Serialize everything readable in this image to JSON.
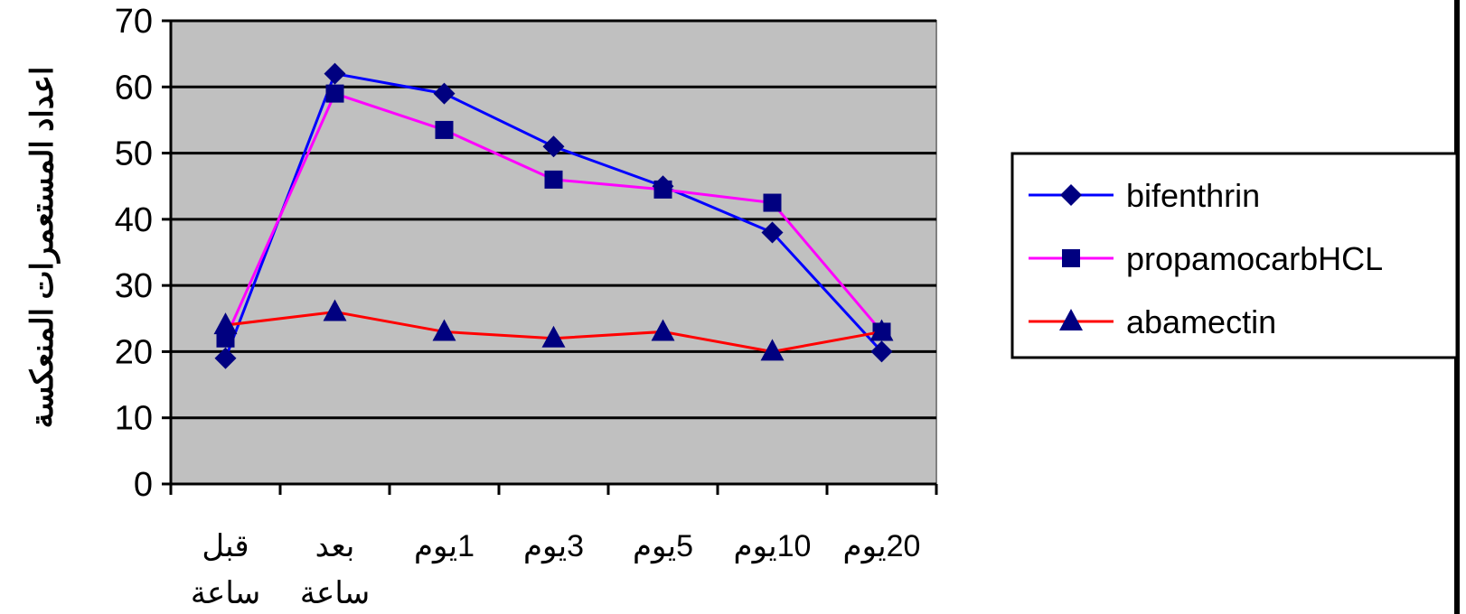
{
  "chart_data": {
    "type": "line",
    "title": "",
    "xlabel": "",
    "ylabel": "اعداد المستعمرات المنعكسة",
    "ylim": [
      0,
      70
    ],
    "yticks": [
      0,
      10,
      20,
      30,
      40,
      50,
      60,
      70
    ],
    "grid": true,
    "plot_background": "#c0c0c0",
    "legend_position": "right",
    "categories": [
      [
        "قبل",
        "ساعة"
      ],
      [
        "بعد",
        "ساعة"
      ],
      [
        "1يوم"
      ],
      [
        "3يوم"
      ],
      [
        "5يوم"
      ],
      [
        "10يوم"
      ],
      [
        "20يوم"
      ]
    ],
    "series": [
      {
        "name": "bifenthrin",
        "color": "#0000ff",
        "marker": "diamond",
        "marker_color": "#000080",
        "values": [
          19,
          62,
          59,
          51,
          45,
          38,
          20
        ]
      },
      {
        "name": "propamocarbHCL",
        "color": "#ff00ff",
        "marker": "square",
        "marker_color": "#000080",
        "values": [
          22,
          59,
          53.5,
          46,
          44.5,
          42.5,
          23
        ]
      },
      {
        "name": "abamectin",
        "color": "#ff0000",
        "marker": "triangle",
        "marker_color": "#000080",
        "values": [
          24,
          26,
          23,
          22,
          23,
          20,
          23
        ]
      }
    ]
  }
}
